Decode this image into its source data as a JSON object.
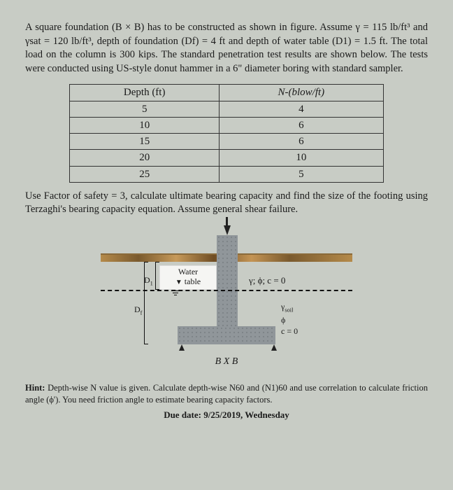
{
  "problem": "A square foundation (B × B) has to be constructed as shown in figure. Assume γ = 115 lb/ft³ and γsat = 120 lb/ft³, depth of foundation (Df) = 4 ft and depth of water table (D1) = 1.5 ft. The total load on the column is 300 kips. The standard penetration test results are shown below. The tests were conducted using US-style donut hammer in a 6\" diameter boring with standard sampler.",
  "table": {
    "columns": [
      "Depth (ft)",
      "N-(blow/ft)"
    ],
    "rows": [
      [
        "5",
        "4"
      ],
      [
        "10",
        "6"
      ],
      [
        "15",
        "6"
      ],
      [
        "20",
        "10"
      ],
      [
        "25",
        "5"
      ]
    ]
  },
  "instruction": "Use Factor of safety = 3, calculate ultimate bearing capacity and find the size of the footing using Terzaghi's bearing capacity equation. Assume general shear failure.",
  "figure": {
    "water_label_line1": "Water",
    "water_label_line2": "table",
    "d1": "D1",
    "df": "Df",
    "soil_top": "γ; ϕ; c = 0",
    "gamma_soil": "γsoil",
    "phi": "ϕ",
    "c0": "c = 0",
    "bxb": "B X B",
    "colors": {
      "background": "#c8ccc5",
      "soil_concrete": "#90969a",
      "ground_strip": "#b58a4a"
    }
  },
  "hint_label": "Hint:",
  "hint": "Depth-wise N value is given. Calculate depth-wise N60 and (N1)60 and use correlation to calculate friction angle (ϕ'). You need friction angle to estimate bearing capacity factors.",
  "due": "Due date: 9/25/2019, Wednesday"
}
